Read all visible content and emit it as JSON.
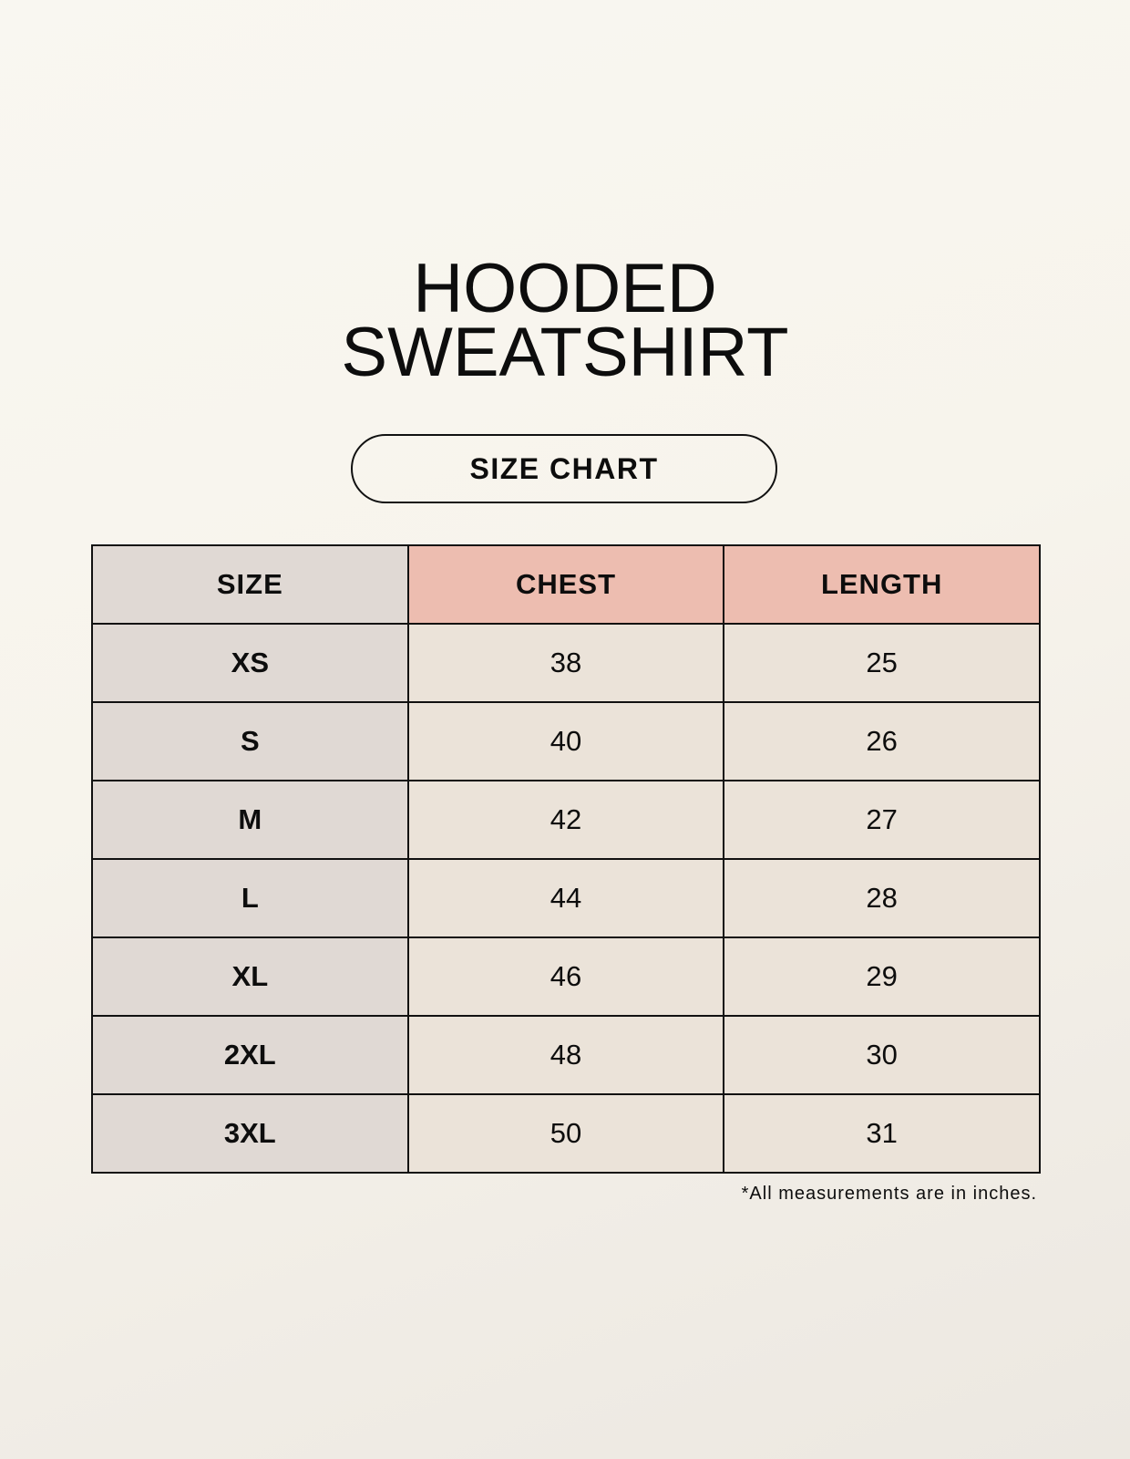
{
  "title": {
    "line1": "HOODED",
    "line2": "SWEATSHIRT"
  },
  "badge": "SIZE CHART",
  "colors": {
    "size_column": "#e0d9d4",
    "header_accent": "#edbdb0",
    "value_cells": "#ebe3d9"
  },
  "table": {
    "headers": [
      "SIZE",
      "CHEST",
      "LENGTH"
    ],
    "rows": [
      [
        "XS",
        "38",
        "25"
      ],
      [
        "S",
        "40",
        "26"
      ],
      [
        "M",
        "42",
        "27"
      ],
      [
        "L",
        "44",
        "28"
      ],
      [
        "XL",
        "46",
        "29"
      ],
      [
        "2XL",
        "48",
        "30"
      ],
      [
        "3XL",
        "50",
        "31"
      ]
    ]
  },
  "footnote": "*All measurements are in inches."
}
